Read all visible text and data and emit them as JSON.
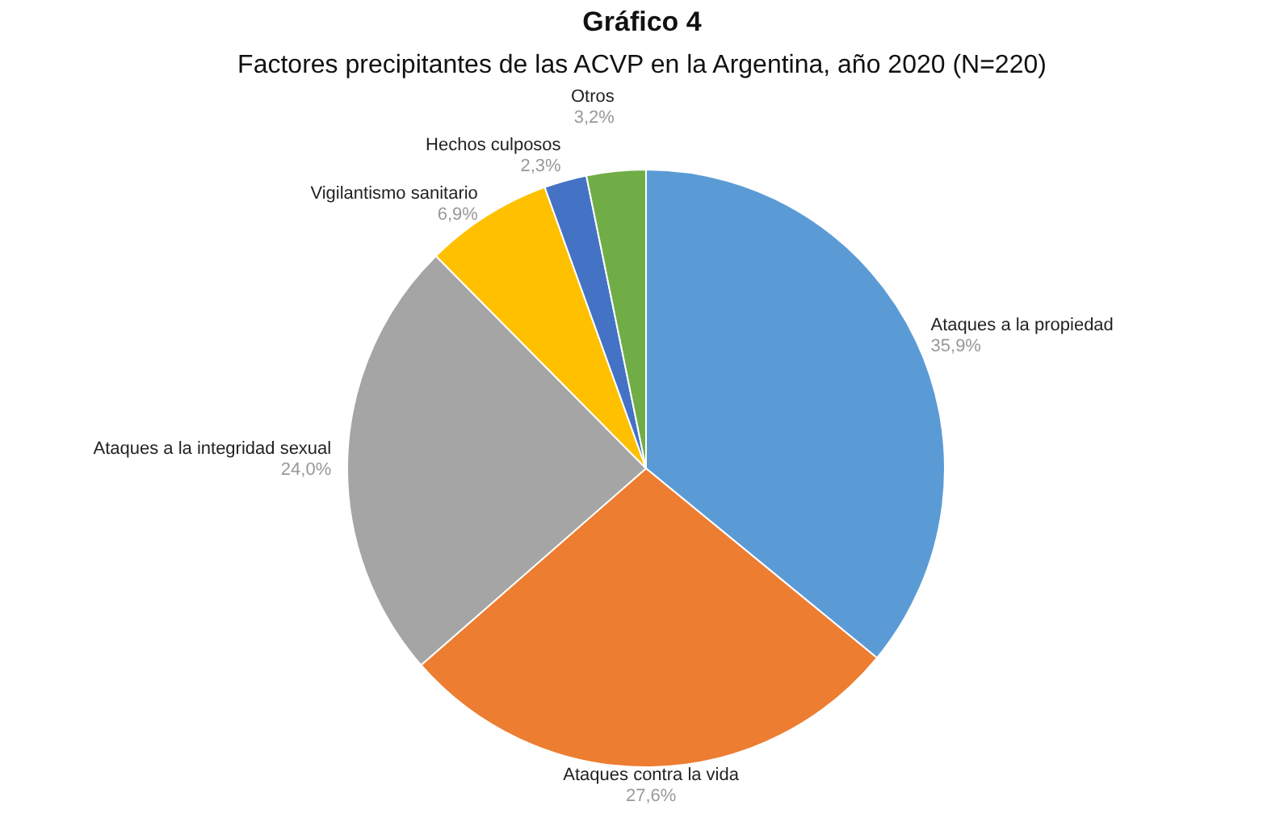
{
  "chart_data": {
    "type": "pie",
    "title": "Gráfico 4",
    "subtitle": "Factores precipitantes de las ACVP en la Argentina, año 2020 (N=220)",
    "categories": [
      "Ataques a la propiedad",
      "Ataques contra la vida",
      "Ataques a la integridad sexual",
      "Vigilantismo sanitario",
      "Hechos culposos",
      "Otros"
    ],
    "values": [
      35.9,
      27.6,
      24.0,
      6.9,
      2.3,
      3.2
    ],
    "colors": [
      "#5b9bd5",
      "#ed7d31",
      "#a5a5a5",
      "#ffc000",
      "#4472c4",
      "#70ad47"
    ],
    "value_labels": [
      "35,9%",
      "27,6%",
      "24,0%",
      "6,9%",
      "2,3%",
      "3,2%"
    ]
  }
}
